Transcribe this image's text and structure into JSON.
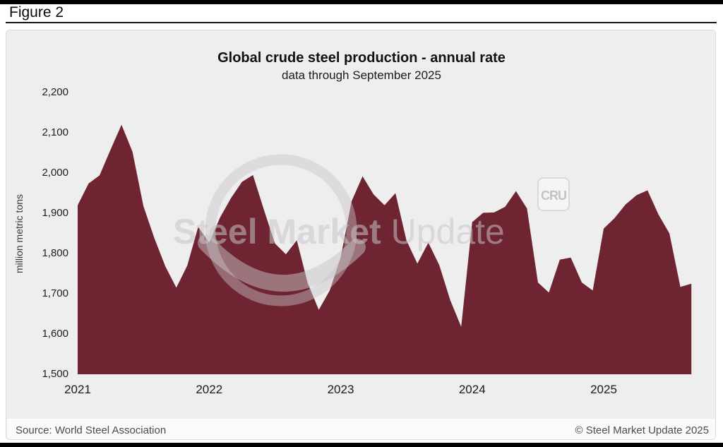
{
  "figure_label": "Figure 2",
  "watermark": {
    "text_bold": "Steel Market",
    "text_light": " Update",
    "badge": "CRU"
  },
  "y_axis": {
    "ticks": [
      {
        "label": "2,200",
        "value": 2200
      },
      {
        "label": "2,100",
        "value": 2100
      },
      {
        "label": "2,000",
        "value": 2000
      },
      {
        "label": "1,900",
        "value": 1900
      },
      {
        "label": "1,800",
        "value": 1800
      },
      {
        "label": "1,700",
        "value": 1700
      },
      {
        "label": "1,600",
        "value": 1600
      },
      {
        "label": "1,500",
        "value": 1500
      }
    ]
  },
  "x_axis": {
    "ticks": [
      {
        "label": "2021",
        "month_index": 0
      },
      {
        "label": "2022",
        "month_index": 12
      },
      {
        "label": "2023",
        "month_index": 24
      },
      {
        "label": "2024",
        "month_index": 36
      },
      {
        "label": "2025",
        "month_index": 48
      }
    ]
  },
  "footer": {
    "source": "Source: World Steel Association",
    "copyright": "© Steel Market Update 2025"
  },
  "colors": {
    "area": "#6e2431",
    "panel_bg": "#efeeef",
    "watermark": "rgba(199,196,199,0.55)"
  },
  "chart_data": {
    "type": "area",
    "title": "Global crude steel production - annual rate",
    "subtitle": "data through September 2025",
    "ylabel": "million metric tons",
    "unit": "million metric tons",
    "ylim": [
      1500,
      2200
    ],
    "ytick_step": 100,
    "grid": false,
    "legend": false,
    "x_start": "2021-01",
    "x_end": "2025-09",
    "months": [
      "2021-01",
      "2021-02",
      "2021-03",
      "2021-04",
      "2021-05",
      "2021-06",
      "2021-07",
      "2021-08",
      "2021-09",
      "2021-10",
      "2021-11",
      "2021-12",
      "2022-01",
      "2022-02",
      "2022-03",
      "2022-04",
      "2022-05",
      "2022-06",
      "2022-07",
      "2022-08",
      "2022-09",
      "2022-10",
      "2022-11",
      "2022-12",
      "2023-01",
      "2023-02",
      "2023-03",
      "2023-04",
      "2023-05",
      "2023-06",
      "2023-07",
      "2023-08",
      "2023-09",
      "2023-10",
      "2023-11",
      "2023-12",
      "2024-01",
      "2024-02",
      "2024-03",
      "2024-04",
      "2024-05",
      "2024-06",
      "2024-07",
      "2024-08",
      "2024-09",
      "2024-10",
      "2024-11",
      "2024-12",
      "2025-01",
      "2025-02",
      "2025-03",
      "2025-04",
      "2025-05",
      "2025-06",
      "2025-07",
      "2025-08",
      "2025-09"
    ],
    "values": [
      1920,
      1974,
      1994,
      2058,
      2120,
      2053,
      1918,
      1838,
      1768,
      1715,
      1770,
      1866,
      1827,
      1890,
      1938,
      1978,
      1995,
      1908,
      1825,
      1798,
      1833,
      1726,
      1660,
      1708,
      1790,
      1930,
      1992,
      1947,
      1920,
      1950,
      1833,
      1775,
      1827,
      1771,
      1684,
      1618,
      1878,
      1901,
      1902,
      1916,
      1955,
      1912,
      1728,
      1703,
      1785,
      1790,
      1728,
      1708,
      1862,
      1888,
      1922,
      1945,
      1957,
      1897,
      1850,
      1717,
      1725
    ],
    "area_color": "#6e2431"
  }
}
